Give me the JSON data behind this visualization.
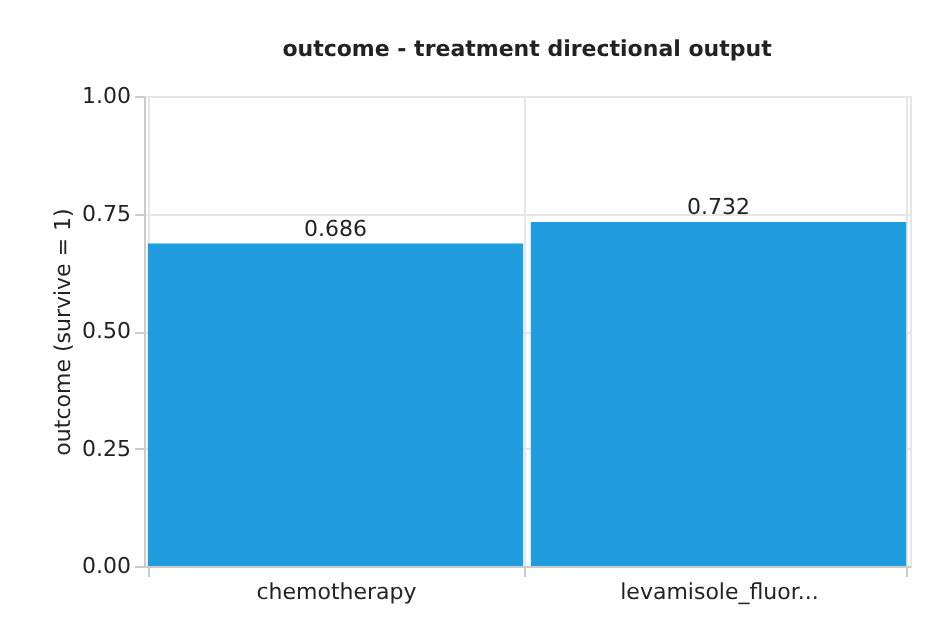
{
  "chart_data": {
    "type": "bar",
    "title": "outcome - treatment directional output",
    "ylabel": "outcome (survive = 1)",
    "categories": [
      "chemotherapy",
      "levamisole_fluor..."
    ],
    "values": [
      0.686,
      0.732
    ],
    "color": "#1f9ddf",
    "ylim": [
      0,
      1
    ],
    "yticks": [
      {
        "value": 0,
        "label": "0.00"
      },
      {
        "value": 0.25,
        "label": "0.25"
      },
      {
        "value": 0.5,
        "label": "0.50"
      },
      {
        "value": 0.75,
        "label": "0.75"
      },
      {
        "value": 1,
        "label": "1.00"
      }
    ],
    "grid": true,
    "data_labels": true
  }
}
